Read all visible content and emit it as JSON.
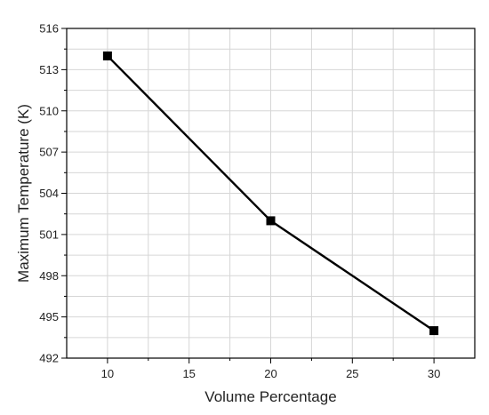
{
  "chart_data": {
    "type": "line",
    "xlabel": "Volume Percentage",
    "ylabel": "Maximum Temperature (K)",
    "xlim": [
      7.5,
      32.5
    ],
    "ylim": [
      492,
      516
    ],
    "xticks": [
      10,
      15,
      20,
      25,
      30
    ],
    "yticks": [
      492,
      495,
      498,
      501,
      504,
      507,
      510,
      513,
      516
    ],
    "x_minor_ticks": [
      12.5,
      17.5,
      22.5,
      27.5
    ],
    "y_minor_ticks": [
      493.5,
      496.5,
      499.5,
      502.5,
      505.5,
      508.5,
      511.5,
      514.5
    ],
    "grid": true,
    "series": [
      {
        "x": [
          10,
          20,
          30
        ],
        "y": [
          514,
          502,
          494
        ],
        "marker": "square",
        "color": "#000000"
      }
    ]
  }
}
